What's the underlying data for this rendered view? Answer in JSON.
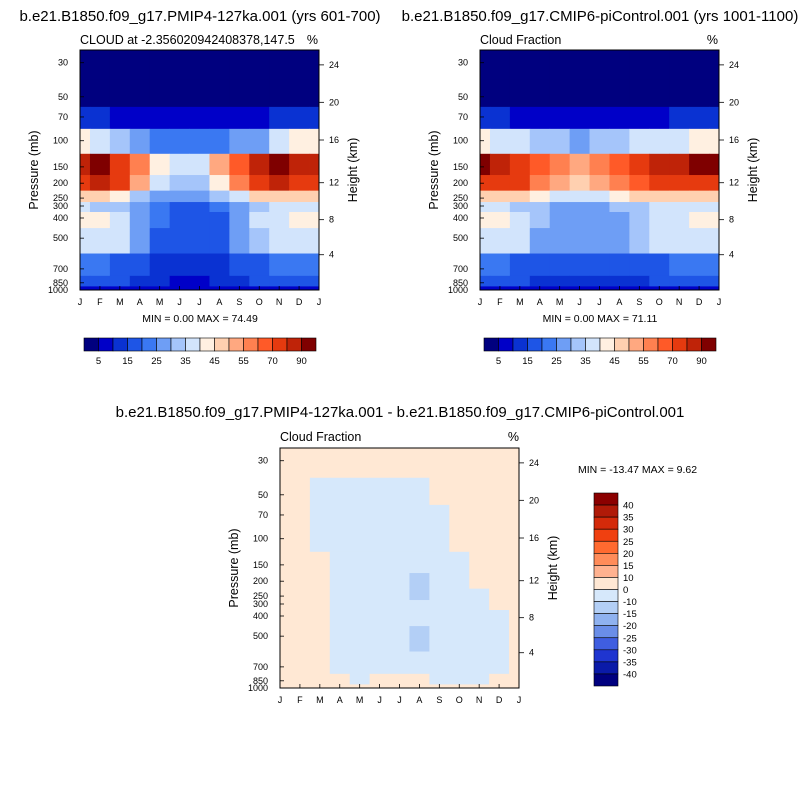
{
  "chart_data": [
    {
      "type": "heatmap",
      "title": "b.e21.B1850.f09_g17.PMIP4-127ka.001 (yrs 601-700)",
      "subtitle_left": "CLOUD at -2.356020942408378,147.5",
      "subtitle_right": "%",
      "ylabel": "Pressure (mb)",
      "ylabel_right": "Height (km)",
      "x_ticks": [
        "J",
        "F",
        "M",
        "A",
        "M",
        "J",
        "J",
        "A",
        "S",
        "O",
        "N",
        "D",
        "J"
      ],
      "y_ticks": [
        "30",
        "50",
        "70",
        "100",
        "150",
        "200",
        "250",
        "300",
        "400",
        "500",
        "700",
        "850",
        "1000"
      ],
      "y_ticks_right": [
        "24",
        "20",
        "16",
        "12",
        "8",
        "4"
      ],
      "stats": "MIN =   0.00 MAX =  74.49",
      "min": 0.0,
      "max": 74.49,
      "colorbar_labels": [
        "5",
        "15",
        "25",
        "35",
        "45",
        "55",
        "70",
        "90"
      ],
      "colorbar_colors": [
        "#00007f",
        "#0000c8",
        "#0a32d2",
        "#1e55e6",
        "#3a78f2",
        "#6e9ef5",
        "#a5c5fa",
        "#d2e4fc",
        "#fff0e1",
        "#ffd0b0",
        "#ffa880",
        "#ff8050",
        "#ff5a28",
        "#e63a0f",
        "#bf2308",
        "#7f0000"
      ],
      "rows": [
        {
          "level": "30",
          "values": [
            1,
            1,
            1,
            1,
            1,
            1,
            1,
            1,
            1,
            1,
            1,
            1,
            1
          ]
        },
        {
          "level": "50",
          "values": [
            2,
            2,
            2,
            2,
            2,
            2,
            2,
            2,
            2,
            2,
            2,
            2,
            2
          ]
        },
        {
          "level": "70",
          "values": [
            6,
            5,
            4,
            3,
            3,
            3,
            3,
            3,
            3,
            4,
            5,
            6,
            6
          ]
        },
        {
          "level": "100",
          "values": [
            35,
            30,
            28,
            22,
            18,
            18,
            18,
            18,
            20,
            24,
            30,
            35,
            35
          ]
        },
        {
          "level": "150",
          "values": [
            68,
            70,
            64,
            50,
            38,
            32,
            34,
            45,
            58,
            66,
            70,
            68,
            68
          ]
        },
        {
          "level": "200",
          "values": [
            62,
            66,
            60,
            46,
            34,
            25,
            26,
            38,
            52,
            62,
            65,
            62,
            62
          ]
        },
        {
          "level": "250",
          "values": [
            40,
            42,
            38,
            28,
            24,
            20,
            22,
            26,
            34,
            40,
            42,
            40,
            40
          ]
        },
        {
          "level": "300",
          "values": [
            30,
            28,
            26,
            20,
            16,
            14,
            14,
            18,
            24,
            28,
            30,
            30,
            30
          ]
        },
        {
          "level": "400",
          "values": [
            36,
            38,
            34,
            24,
            15,
            10,
            11,
            14,
            22,
            30,
            34,
            36,
            36
          ]
        },
        {
          "level": "500",
          "values": [
            32,
            34,
            30,
            22,
            14,
            10,
            12,
            14,
            20,
            28,
            30,
            32,
            32
          ]
        },
        {
          "level": "700",
          "values": [
            18,
            16,
            14,
            10,
            8,
            6,
            6,
            8,
            10,
            14,
            16,
            18,
            18
          ]
        },
        {
          "level": "850",
          "values": [
            14,
            12,
            10,
            8,
            6,
            4,
            4,
            6,
            8,
            10,
            12,
            14,
            14
          ]
        },
        {
          "level": "1000",
          "values": [
            4,
            4,
            4,
            4,
            4,
            4,
            4,
            4,
            4,
            4,
            4,
            4,
            4
          ]
        }
      ]
    },
    {
      "type": "heatmap",
      "title": "b.e21.B1850.f09_g17.CMIP6-piControl.001 (yrs 1001-1100)",
      "subtitle_left": "Cloud Fraction",
      "subtitle_right": "%",
      "ylabel": "Pressure (mb)",
      "ylabel_right": "Height (km)",
      "x_ticks": [
        "J",
        "F",
        "M",
        "A",
        "M",
        "J",
        "J",
        "A",
        "S",
        "O",
        "N",
        "D",
        "J"
      ],
      "y_ticks": [
        "30",
        "50",
        "70",
        "100",
        "150",
        "200",
        "250",
        "300",
        "400",
        "500",
        "700",
        "850",
        "1000"
      ],
      "y_ticks_right": [
        "24",
        "20",
        "16",
        "12",
        "8",
        "4"
      ],
      "stats": "MIN =   0.00 MAX =  71.11",
      "min": 0.0,
      "max": 71.11,
      "colorbar_labels": [
        "5",
        "15",
        "25",
        "35",
        "45",
        "55",
        "70",
        "90"
      ],
      "rows": [
        {
          "level": "30",
          "values": [
            1,
            1,
            1,
            1,
            1,
            1,
            1,
            1,
            1,
            1,
            1,
            1,
            1
          ]
        },
        {
          "level": "50",
          "values": [
            2,
            2,
            2,
            2,
            2,
            2,
            2,
            2,
            2,
            2,
            2,
            2,
            2
          ]
        },
        {
          "level": "70",
          "values": [
            6,
            5,
            4,
            3,
            3,
            3,
            3,
            3,
            3,
            4,
            5,
            6,
            6
          ]
        },
        {
          "level": "100",
          "values": [
            35,
            32,
            30,
            28,
            26,
            24,
            26,
            28,
            30,
            32,
            34,
            35,
            35
          ]
        },
        {
          "level": "150",
          "values": [
            70,
            68,
            64,
            58,
            50,
            48,
            50,
            56,
            62,
            66,
            68,
            70,
            70
          ]
        },
        {
          "level": "200",
          "values": [
            64,
            64,
            60,
            52,
            46,
            44,
            46,
            50,
            58,
            62,
            64,
            64,
            64
          ]
        },
        {
          "level": "250",
          "values": [
            44,
            42,
            40,
            36,
            34,
            32,
            34,
            36,
            40,
            42,
            44,
            44,
            44
          ]
        },
        {
          "level": "300",
          "values": [
            32,
            30,
            28,
            26,
            24,
            22,
            24,
            26,
            28,
            30,
            32,
            32,
            32
          ]
        },
        {
          "level": "400",
          "values": [
            36,
            38,
            34,
            26,
            22,
            22,
            22,
            24,
            28,
            32,
            34,
            36,
            36
          ]
        },
        {
          "level": "500",
          "values": [
            32,
            34,
            30,
            24,
            20,
            22,
            22,
            22,
            26,
            30,
            30,
            32,
            32
          ]
        },
        {
          "level": "700",
          "values": [
            18,
            16,
            14,
            12,
            10,
            10,
            10,
            10,
            12,
            14,
            16,
            18,
            18
          ]
        },
        {
          "level": "850",
          "values": [
            14,
            12,
            10,
            8,
            8,
            8,
            8,
            8,
            8,
            10,
            12,
            14,
            14
          ]
        },
        {
          "level": "1000",
          "values": [
            4,
            4,
            4,
            4,
            4,
            4,
            4,
            4,
            4,
            4,
            4,
            4,
            4
          ]
        }
      ]
    },
    {
      "type": "heatmap",
      "title": "b.e21.B1850.f09_g17.PMIP4-127ka.001 - b.e21.B1850.f09_g17.CMIP6-piControl.001",
      "subtitle_left": "Cloud Fraction",
      "subtitle_right": "%",
      "ylabel": "Pressure (mb)",
      "ylabel_right": "Height (km)",
      "x_ticks": [
        "J",
        "F",
        "M",
        "A",
        "M",
        "J",
        "J",
        "A",
        "S",
        "O",
        "N",
        "D",
        "J"
      ],
      "y_ticks": [
        "30",
        "50",
        "70",
        "100",
        "150",
        "200",
        "250",
        "300",
        "400",
        "500",
        "700",
        "850",
        "1000"
      ],
      "y_ticks_right": [
        "24",
        "20",
        "16",
        "12",
        "8",
        "4"
      ],
      "stats": "MIN = -13.47 MAX =   9.62",
      "min": -13.47,
      "max": 9.62,
      "colorbar_labels": [
        "40",
        "35",
        "30",
        "25",
        "20",
        "15",
        "10",
        "0",
        "-10",
        "-15",
        "-20",
        "-25",
        "-30",
        "-35",
        "-40"
      ],
      "colorbar_colors": [
        "#8b0000",
        "#b01a08",
        "#d42a0a",
        "#f04010",
        "#ff6a30",
        "#ff8c5a",
        "#ffb290",
        "#ffe8d4",
        "#d6e8fb",
        "#b3cff6",
        "#8fb2f0",
        "#6a8ee8",
        "#3f5ee0",
        "#1f35d0",
        "#0a1aa8",
        "#00007f"
      ],
      "rows": [
        {
          "level": "30",
          "values": [
            2,
            2,
            2,
            2,
            2,
            2,
            2,
            2,
            2,
            2,
            2,
            2,
            2
          ]
        },
        {
          "level": "50",
          "values": [
            2,
            2,
            -1,
            -1,
            -2,
            -2,
            -2,
            -2,
            2,
            2,
            2,
            2,
            2
          ]
        },
        {
          "level": "70",
          "values": [
            2,
            2,
            -2,
            -2,
            -2,
            -2,
            -2,
            -2,
            -2,
            2,
            2,
            2,
            2
          ]
        },
        {
          "level": "100",
          "values": [
            2,
            2,
            -2,
            -3,
            -3,
            -4,
            -4,
            -3,
            -3,
            2,
            2,
            2,
            2
          ]
        },
        {
          "level": "150",
          "values": [
            2,
            2,
            2,
            -4,
            -4,
            -5,
            -4,
            -4,
            -3,
            -2,
            2,
            2,
            2
          ]
        },
        {
          "level": "200",
          "values": [
            2,
            2,
            2,
            -4,
            -5,
            -6,
            -8,
            -12,
            -5,
            -3,
            2,
            2,
            2
          ]
        },
        {
          "level": "250",
          "values": [
            2,
            2,
            2,
            -3,
            -4,
            -6,
            -10,
            -13,
            -6,
            -4,
            -2,
            2,
            2
          ]
        },
        {
          "level": "300",
          "values": [
            2,
            2,
            2,
            -3,
            -4,
            -5,
            -6,
            -8,
            -5,
            -4,
            -3,
            2,
            2
          ]
        },
        {
          "level": "400",
          "values": [
            2,
            2,
            2,
            -3,
            -3,
            -4,
            -5,
            -6,
            -5,
            -4,
            -3,
            -2,
            2
          ]
        },
        {
          "level": "500",
          "values": [
            2,
            2,
            2,
            -3,
            -3,
            -4,
            -6,
            -12,
            -8,
            -4,
            -3,
            -2,
            2
          ]
        },
        {
          "level": "700",
          "values": [
            2,
            2,
            2,
            -2,
            -3,
            -3,
            -2,
            -3,
            -3,
            -3,
            -2,
            -2,
            2
          ]
        },
        {
          "level": "850",
          "values": [
            2,
            2,
            2,
            2,
            -2,
            2,
            2,
            2,
            -2,
            -2,
            -2,
            2,
            2
          ]
        },
        {
          "level": "1000",
          "values": [
            2,
            2,
            2,
            2,
            2,
            2,
            2,
            2,
            2,
            2,
            2,
            2,
            2
          ]
        }
      ]
    }
  ]
}
